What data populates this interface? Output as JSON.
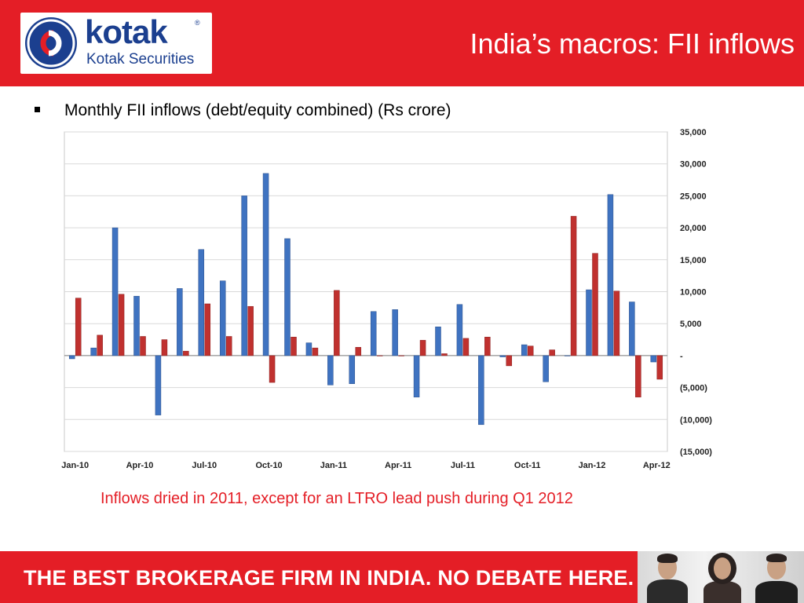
{
  "header": {
    "brand": "kotak",
    "brand_sub": "Kotak Securities",
    "reg_mark": "®",
    "title": "India’s macros: FII inflows"
  },
  "subtitle": "Monthly FII inflows (debt/equity combined) (Rs crore)",
  "caption": "Inflows dried in 2011, except for an LTRO lead push during Q1 2012",
  "footer": {
    "tagline": "THE BEST BROKERAGE FIRM IN INDIA. NO DEBATE HERE."
  },
  "colors": {
    "brand_red": "#e41e26",
    "brand_blue": "#1b3f8f",
    "series_blue": "#3f73c1",
    "series_red": "#c0312f"
  },
  "icons": {
    "logo": "kotak-logo-icon",
    "bullet": "square-bullet-icon"
  },
  "chart_data": {
    "type": "bar",
    "title": "",
    "xlabel": "",
    "ylabel": "",
    "ylim": [
      -15000,
      35000
    ],
    "yticks": [
      35000,
      30000,
      25000,
      20000,
      15000,
      10000,
      5000,
      0,
      -5000,
      -10000,
      -15000
    ],
    "ytick_labels": [
      "35,000",
      "30,000",
      "25,000",
      "20,000",
      "15,000",
      "10,000",
      "5,000",
      "-",
      "(5,000)",
      "(10,000)",
      "(15,000)"
    ],
    "y_axis_side": "right",
    "grid": true,
    "legend": "none",
    "categories": [
      "Jan-10",
      "Feb-10",
      "Mar-10",
      "Apr-10",
      "May-10",
      "Jun-10",
      "Jul-10",
      "Aug-10",
      "Sep-10",
      "Oct-10",
      "Nov-10",
      "Dec-10",
      "Jan-11",
      "Feb-11",
      "Mar-11",
      "Apr-11",
      "May-11",
      "Jun-11",
      "Jul-11",
      "Aug-11",
      "Sep-11",
      "Oct-11",
      "Nov-11",
      "Dec-11",
      "Jan-12",
      "Feb-12",
      "Mar-12",
      "Apr-12"
    ],
    "xtick_labels": [
      "Jan-10",
      "Apr-10",
      "Jul-10",
      "Oct-10",
      "Jan-11",
      "Apr-11",
      "Jul-11",
      "Oct-11",
      "Jan-12",
      "Apr-12"
    ],
    "series": [
      {
        "values": [
          -500,
          1200,
          20000,
          9300,
          -9300,
          10500,
          16600,
          11700,
          25000,
          28500,
          18300,
          2000,
          -4600,
          -4400,
          6900,
          7200,
          -6500,
          4500,
          8000,
          -10800,
          -200,
          1700,
          -4100,
          0,
          10300,
          25200,
          8400,
          -1000
        ]
      },
      {
        "values": [
          9000,
          3200,
          9600,
          3000,
          2500,
          700,
          8100,
          3000,
          7700,
          -4200,
          2900,
          1200,
          10200,
          1300,
          0,
          0,
          2400,
          300,
          2700,
          2900,
          -1600,
          1500,
          900,
          21800,
          16000,
          10100,
          -6500,
          -3700
        ]
      }
    ]
  }
}
